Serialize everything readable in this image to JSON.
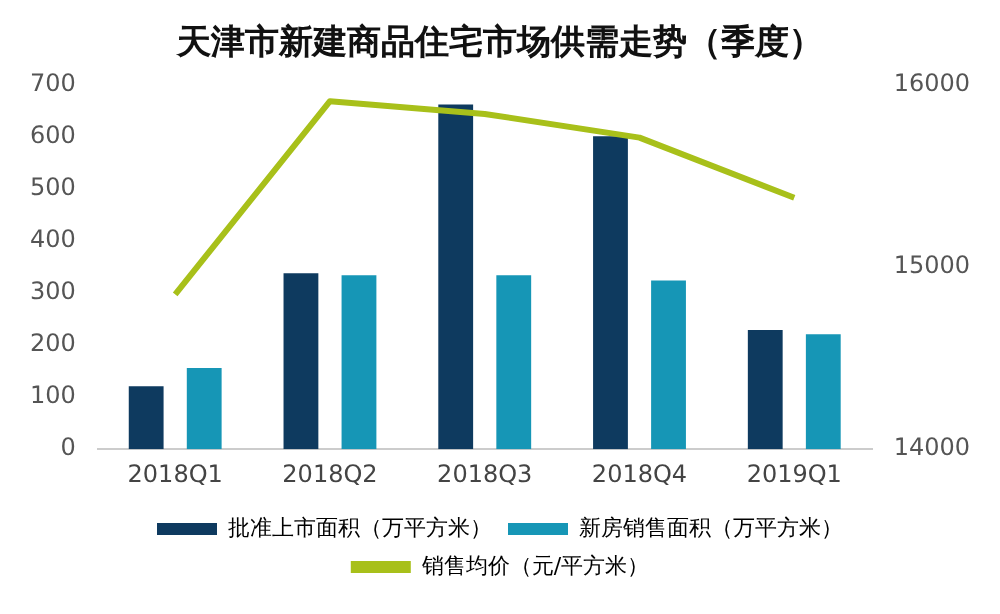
{
  "chart_data": {
    "type": "bar",
    "title": "天津市新建商品住宅市场供需走势（季度）",
    "categories": [
      "2018Q1",
      "2018Q2",
      "2018Q3",
      "2018Q4",
      "2019Q1"
    ],
    "series": [
      {
        "name": "批准上市面积（万平方米）",
        "color": "#0e3a5f",
        "values": [
          121,
          338,
          662,
          601,
          229
        ]
      },
      {
        "name": "新房销售面积（万平方米）",
        "color": "#1696b6",
        "values": [
          156,
          334,
          334,
          324,
          221
        ]
      },
      {
        "name": "销售均价（元/平方米）",
        "color": "#a8c01a",
        "type": "line",
        "axis": "y2",
        "values": [
          14850,
          15910,
          15840,
          15710,
          15380
        ]
      }
    ],
    "ylim": [
      0,
      700
    ],
    "yticks": [
      0,
      100,
      200,
      300,
      400,
      500,
      600,
      700
    ],
    "y2lim": [
      14000,
      16000
    ],
    "y2ticks": [
      14000,
      15000,
      16000
    ],
    "grid": false,
    "legend": "bottom",
    "marker": "none"
  }
}
